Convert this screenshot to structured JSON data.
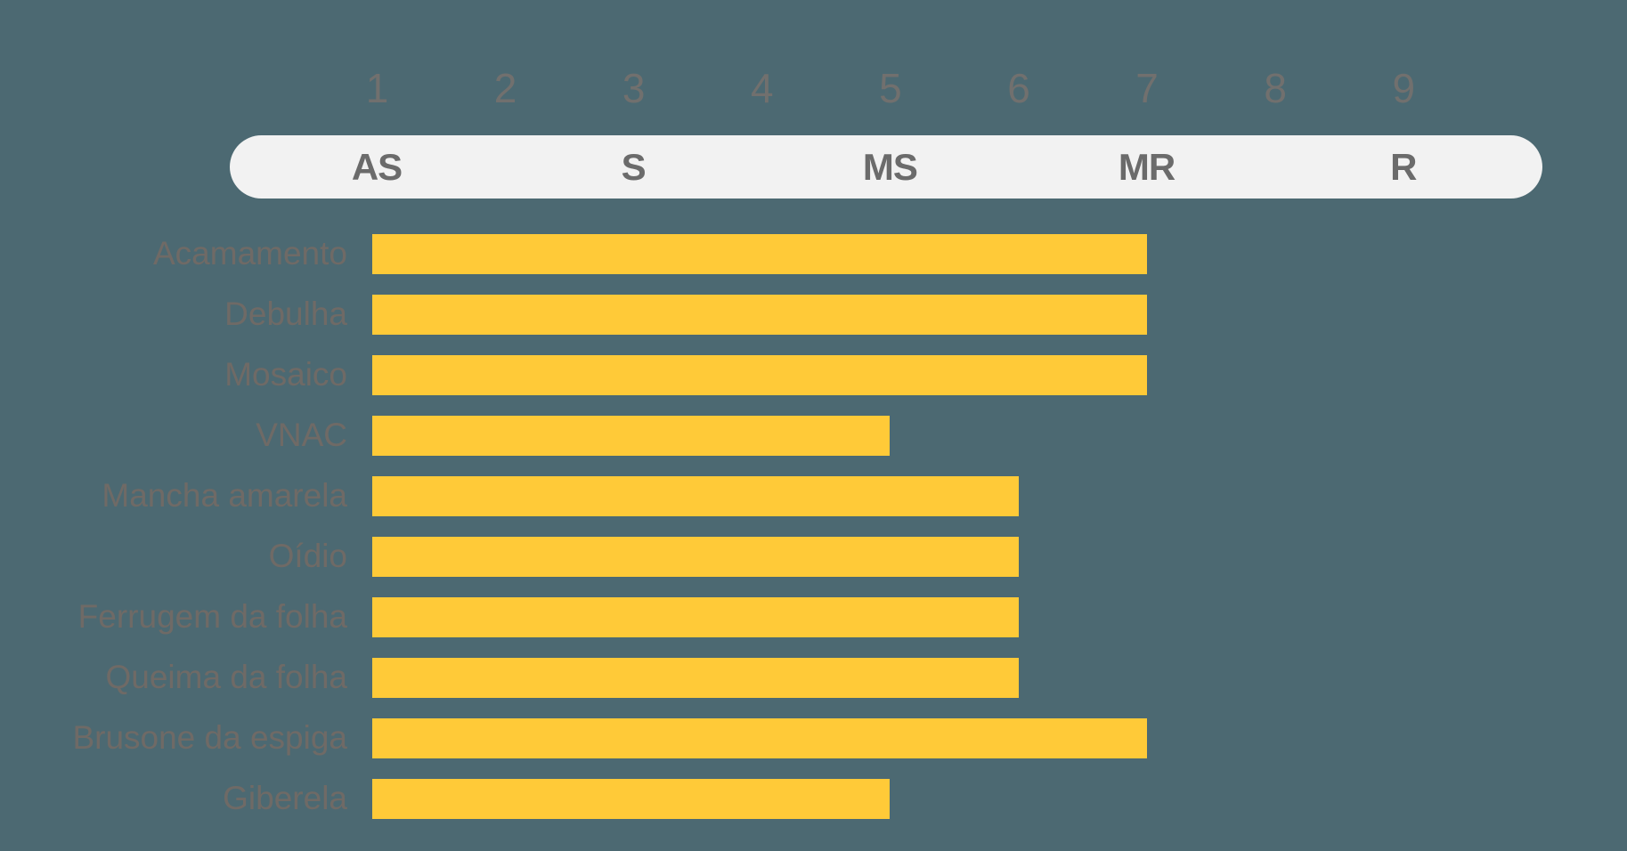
{
  "chart_data": {
    "type": "bar",
    "orientation": "horizontal",
    "title": "",
    "x_axis": {
      "ticks": [
        "1",
        "2",
        "3",
        "4",
        "5",
        "6",
        "7",
        "8",
        "9"
      ],
      "min": 1,
      "max": 9,
      "grid": false
    },
    "zone_scale": {
      "labels": [
        "AS",
        "S",
        "MS",
        "MR",
        "R"
      ],
      "centered_on_ticks": [
        1,
        3,
        5,
        7,
        9
      ]
    },
    "categories": [
      "Acamamento",
      "Debulha",
      "Mosaico",
      "VNAC",
      "Mancha amarela",
      "Oídio",
      "Ferrugem da folha",
      "Queima da folha",
      "Brusone da espiga",
      "Giberela"
    ],
    "values": [
      7,
      7,
      7,
      5,
      6,
      6,
      6,
      6,
      7,
      5
    ],
    "colors": {
      "background": "#4C6972",
      "bar": "#FFCA38",
      "pill": "#F2F2F2",
      "axis_text": "#71706E",
      "zone_text": "#6B6B6B",
      "label_text": "#6F6A66"
    },
    "legend": "none"
  }
}
